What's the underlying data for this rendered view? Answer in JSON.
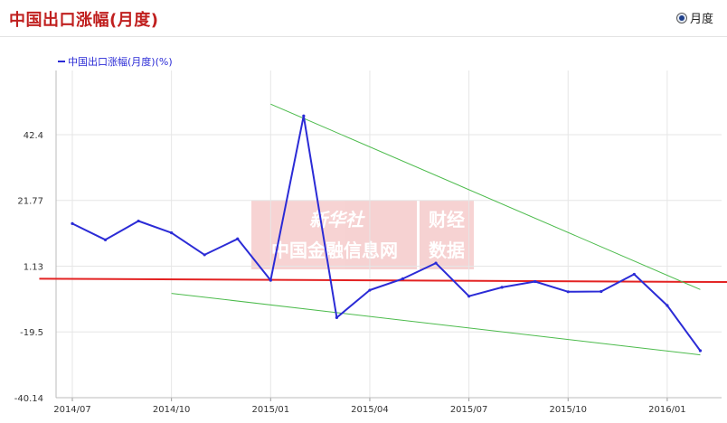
{
  "header": {
    "title": "中国出口涨幅(月度)",
    "period_option": "月度"
  },
  "watermark": {
    "logo_text": "新华社",
    "line1": "中国金融信息网",
    "right_line1": "财经",
    "right_line2": "数据"
  },
  "colors": {
    "series": "#2b2bd6",
    "trend_red": "#e32222",
    "trend_green": "#4cbb4c",
    "title": "#c0201f"
  },
  "chart_data": {
    "type": "line",
    "series_name": "中国出口涨幅(月度)(%)",
    "x_ticks": [
      "2014/07",
      "2014/10",
      "2015/01",
      "2015/04",
      "2015/07",
      "2015/10",
      "2016/01"
    ],
    "y_ticks": [
      "42.4",
      "21.77",
      "1.13",
      "-19.5",
      "-40.14"
    ],
    "ylim": [
      -40.14,
      42.4
    ],
    "grid": true,
    "legend": "top-left",
    "series": [
      {
        "name": "中国出口涨幅(月度)(%)",
        "x": [
          "2014/07",
          "2014/08",
          "2014/09",
          "2014/10",
          "2014/11",
          "2014/12",
          "2015/01",
          "2015/02",
          "2015/03",
          "2015/04",
          "2015/05",
          "2015/06",
          "2015/07",
          "2015/08",
          "2015/09",
          "2015/10",
          "2015/11",
          "2015/12",
          "2016/01",
          "2016/02"
        ],
        "y": [
          14.5,
          9.4,
          15.3,
          11.6,
          4.7,
          9.7,
          -3.3,
          48.3,
          -15.0,
          -6.4,
          -2.8,
          2.1,
          -8.3,
          -5.5,
          -3.7,
          -6.9,
          -6.8,
          -1.4,
          -11.2,
          -25.4
        ]
      }
    ],
    "trend_lines": [
      {
        "color": "red",
        "x": [
          "2014/06",
          "2016/04"
        ],
        "y": [
          -2.8,
          -3.9
        ]
      },
      {
        "color": "green",
        "x": [
          "2015/01",
          "2016/02"
        ],
        "y": [
          52.0,
          -6.2
        ]
      },
      {
        "color": "green",
        "x": [
          "2014/10",
          "2016/02"
        ],
        "y": [
          -7.4,
          -26.7
        ]
      }
    ]
  }
}
